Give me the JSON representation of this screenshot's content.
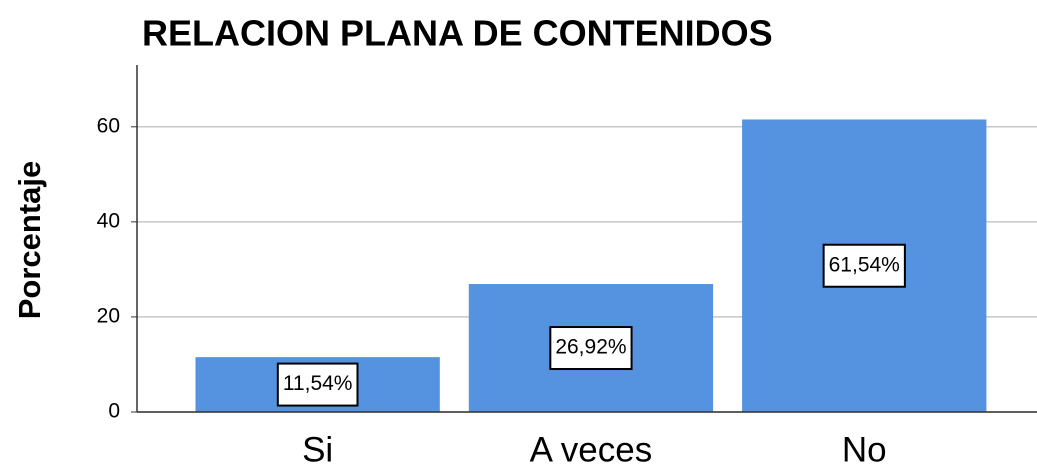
{
  "chart_data": {
    "type": "bar",
    "title": "RELACION PLANA DE CONTENIDOS",
    "y_label": "Porcentaje",
    "categories": [
      "Si",
      "A veces",
      "No"
    ],
    "values": [
      11.54,
      26.92,
      61.54
    ],
    "value_labels": [
      "11,54%",
      "26,92%",
      "61,54%"
    ],
    "color": "#5592e0",
    "ylim": [
      0,
      73
    ],
    "yticks": [
      0,
      20,
      40,
      60
    ],
    "grid": true
  }
}
